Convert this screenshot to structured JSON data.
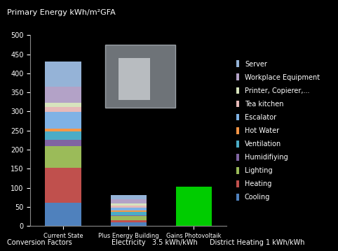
{
  "chart_data": {
    "type": "bar",
    "stacked": true,
    "title": "Primary Energy kWh/m²GFA",
    "categories": [
      "Current State",
      "Plus Energy Building",
      "Gains Photovoltaik"
    ],
    "ylim": [
      0,
      500
    ],
    "yticks": [
      0,
      50,
      100,
      150,
      200,
      250,
      300,
      350,
      400,
      450,
      500
    ],
    "grid": false,
    "legend": "right",
    "series": [
      {
        "name": "Cooling",
        "color": "#4f81bd",
        "values": [
          60,
          10,
          null
        ]
      },
      {
        "name": "Heating",
        "color": "#c0504d",
        "values": [
          93,
          5,
          null
        ]
      },
      {
        "name": "Lighting",
        "color": "#9bbb59",
        "values": [
          57,
          10,
          null
        ]
      },
      {
        "name": "Humidifiying",
        "color": "#8064a2",
        "values": [
          15,
          3,
          null
        ]
      },
      {
        "name": "Ventilation",
        "color": "#4bacc6",
        "values": [
          23,
          8,
          null
        ]
      },
      {
        "name": "Hot Water",
        "color": "#f79646",
        "values": [
          7,
          4,
          null
        ]
      },
      {
        "name": "Escalator",
        "color": "#7fb2e5",
        "values": [
          43,
          8,
          null
        ]
      },
      {
        "name": "Tea kitchen",
        "color": "#e6b9b8",
        "values": [
          14,
          5,
          null
        ]
      },
      {
        "name": "Printer, Copierer,...",
        "color": "#d7e4bd",
        "values": [
          10,
          5,
          null
        ]
      },
      {
        "name": "Workplace Equipment",
        "color": "#b3a2c7",
        "values": [
          43,
          12,
          null
        ]
      },
      {
        "name": "Server",
        "color": "#95b3d7",
        "values": [
          65,
          10,
          null
        ]
      }
    ],
    "photovoltaik_series": {
      "color": "#00cc00",
      "values": [
        null,
        null,
        103
      ]
    },
    "footer": [
      "Conversion Factors",
      "Electricity   3.5 kWh/kWh",
      "District Heating 1 kWh/kWh"
    ]
  }
}
